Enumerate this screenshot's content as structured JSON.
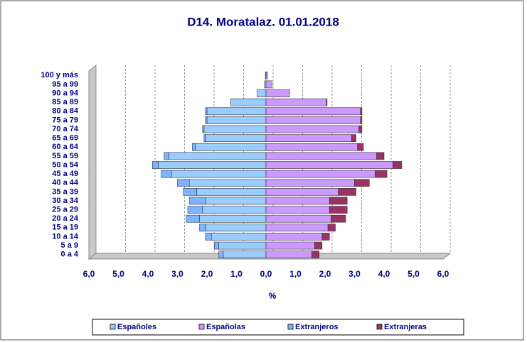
{
  "chart_data": {
    "type": "pyramid",
    "title": "D14. Moratalaz. 01.01.2018",
    "xlabel": "%",
    "categories": [
      "0 a 4",
      "5 a 9",
      "10 a 14",
      "15 a 19",
      "20 a 24",
      "25 a 29",
      "30 a 34",
      "35 a 39",
      "40 a 44",
      "45 a 49",
      "50 a 54",
      "55 a 59",
      "60 a 64",
      "65 a 69",
      "70 a 74",
      "75 a 79",
      "80 a 84",
      "85 a 89",
      "90 a 94",
      "95 a 99",
      "100 y más"
    ],
    "series": [
      {
        "name": "Españoles",
        "color": "#99ccff",
        "stack": "left",
        "values": [
          -1.45,
          -1.6,
          -1.85,
          -2.05,
          -2.25,
          -2.15,
          -2.05,
          -2.35,
          -2.6,
          -3.2,
          -3.65,
          -3.3,
          -2.4,
          -2.05,
          -2.1,
          -2.0,
          -2.0,
          -1.2,
          -0.3,
          -0.05,
          -0.02
        ]
      },
      {
        "name": "Españolas",
        "color": "#cc99ff",
        "stack": "right",
        "values": [
          1.55,
          1.65,
          1.9,
          2.1,
          2.2,
          2.15,
          2.15,
          2.45,
          3.0,
          3.7,
          4.3,
          3.75,
          3.1,
          2.9,
          3.15,
          3.2,
          3.2,
          2.05,
          0.8,
          0.2,
          0.05
        ]
      },
      {
        "name": "Extranjeros",
        "color": "#80b3ff",
        "stack": "left",
        "values": [
          -0.15,
          -0.15,
          -0.2,
          -0.2,
          -0.45,
          -0.5,
          -0.55,
          -0.45,
          -0.4,
          -0.35,
          -0.2,
          -0.15,
          -0.1,
          -0.05,
          -0.05,
          -0.05,
          -0.05,
          0,
          0,
          0,
          0
        ]
      },
      {
        "name": "Extranjeras",
        "color": "#993366",
        "stack": "right",
        "values": [
          0.25,
          0.25,
          0.25,
          0.25,
          0.5,
          0.6,
          0.6,
          0.6,
          0.5,
          0.4,
          0.3,
          0.25,
          0.2,
          0.15,
          0.1,
          0.05,
          0.05,
          0.02,
          0,
          0,
          0
        ]
      }
    ],
    "xlim": [
      -6,
      6
    ],
    "xticks": [
      {
        "value": -6,
        "label": "6,0"
      },
      {
        "value": -5,
        "label": "5,0"
      },
      {
        "value": -4,
        "label": "4,0"
      },
      {
        "value": -3,
        "label": "3,0"
      },
      {
        "value": -2,
        "label": "2,0"
      },
      {
        "value": -1,
        "label": "1,0"
      },
      {
        "value": 0,
        "label": "0,0"
      },
      {
        "value": 1,
        "label": "1,0"
      },
      {
        "value": 2,
        "label": "2,0"
      },
      {
        "value": 3,
        "label": "3,0"
      },
      {
        "value": 4,
        "label": "4,0"
      },
      {
        "value": 5,
        "label": "5,0"
      },
      {
        "value": 6,
        "label": "6,0"
      }
    ],
    "grid": true
  }
}
